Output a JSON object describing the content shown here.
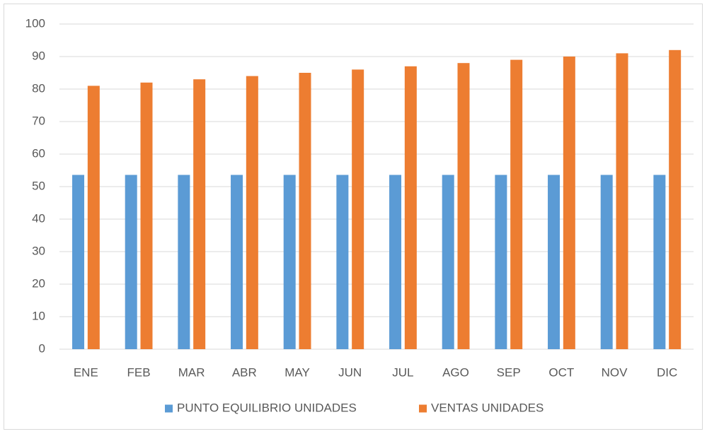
{
  "chart_data": {
    "type": "bar",
    "categories": [
      "ENE",
      "FEB",
      "MAR",
      "ABR",
      "MAY",
      "JUN",
      "JUL",
      "AGO",
      "SEP",
      "OCT",
      "NOV",
      "DIC"
    ],
    "series": [
      {
        "name": "PUNTO EQUILIBRIO UNIDADES",
        "color": "#5b9bd5",
        "values": [
          53.6,
          53.6,
          53.6,
          53.6,
          53.6,
          53.6,
          53.6,
          53.6,
          53.6,
          53.6,
          53.6,
          53.6
        ]
      },
      {
        "name": "VENTAS UNIDADES",
        "color": "#ed7d31",
        "values": [
          81,
          82,
          83,
          84,
          85,
          86,
          87,
          88,
          89,
          90,
          91,
          92
        ]
      }
    ],
    "ylim": [
      0,
      100
    ],
    "yticks": [
      0,
      10,
      20,
      30,
      40,
      50,
      60,
      70,
      80,
      90,
      100
    ],
    "grid": true,
    "legend": "bottom"
  }
}
